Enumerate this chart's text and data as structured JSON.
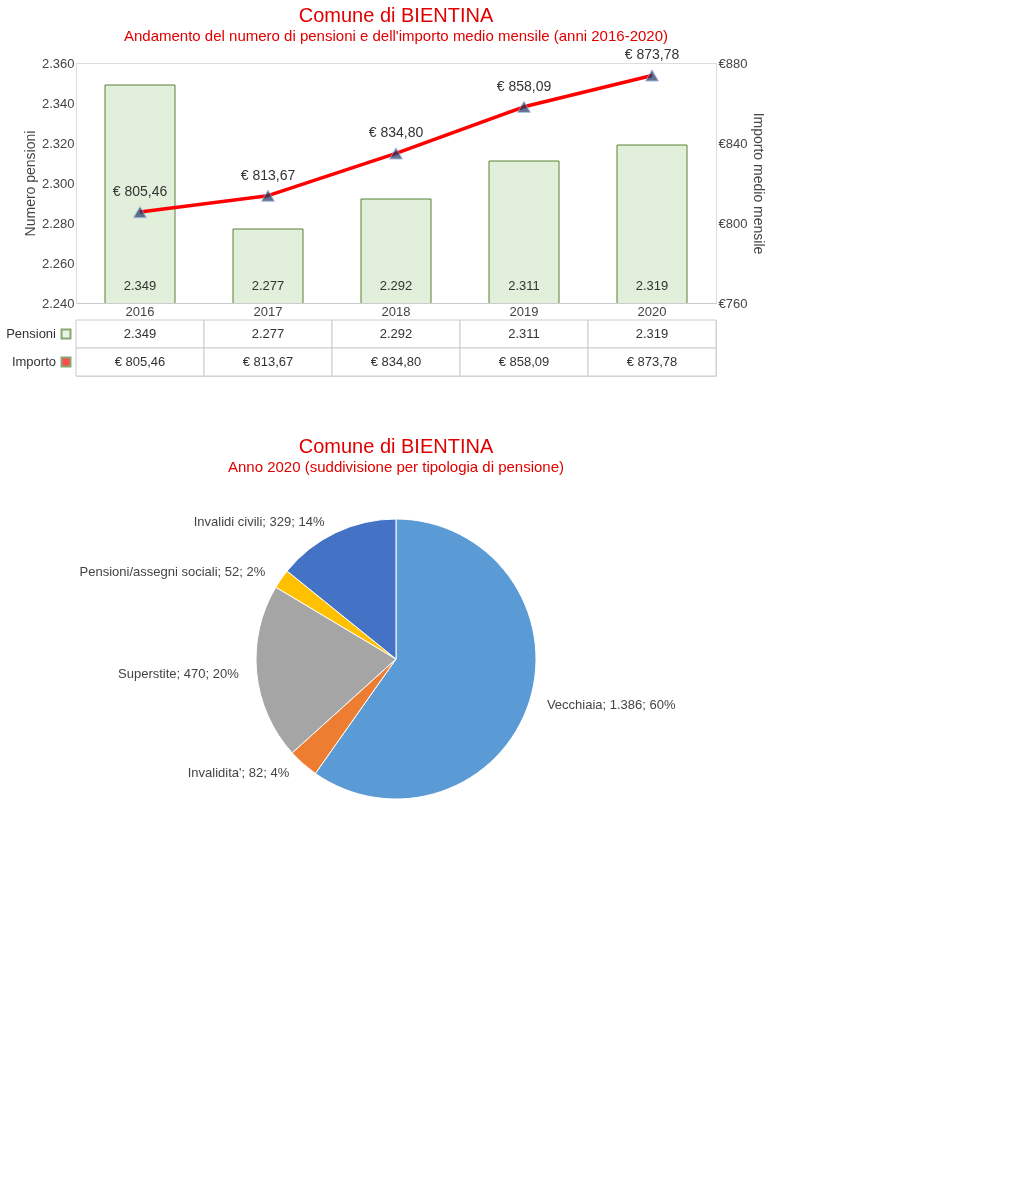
{
  "chart_data": [
    {
      "type": "bar",
      "title": "Comune di BIENTINA",
      "subtitle": "Andamento del numero di pensioni e dell'importo medio mensile (anni 2016-2020)",
      "ylabel": "Numero pensioni",
      "y2label": "Importo medio mensile",
      "categories": [
        "2016",
        "2017",
        "2018",
        "2019",
        "2020"
      ],
      "series": [
        {
          "name": "Pensioni",
          "type": "bar",
          "color": "#e2efda",
          "values": [
            2349,
            2277,
            2292,
            2311,
            2319
          ],
          "value_labels": [
            "2.349",
            "2.277",
            "2.292",
            "2.311",
            "2.319"
          ]
        },
        {
          "name": "Importo",
          "type": "line",
          "axis": "y2",
          "color": "#ff0000",
          "values": [
            805.46,
            813.67,
            834.8,
            858.09,
            873.78
          ],
          "value_labels": [
            "€ 805,46",
            "€ 813,67",
            "€ 834,80",
            "€ 858,09",
            "€ 873,78"
          ]
        }
      ],
      "marker": "triangle",
      "legend": "bottom left",
      "ylim": [
        2240,
        2360
      ],
      "yticks": [
        {
          "value": 2240,
          "label": "2.240"
        },
        {
          "value": 2260,
          "label": "2.260"
        },
        {
          "value": 2280,
          "label": "2.280"
        },
        {
          "value": 2300,
          "label": "2.300"
        },
        {
          "value": 2320,
          "label": "2.320"
        },
        {
          "value": 2340,
          "label": "2.340"
        },
        {
          "value": 2360,
          "label": "2.360"
        }
      ],
      "y2lim": [
        760,
        880
      ],
      "y2ticks": [
        {
          "value": 760,
          "label": "€760"
        },
        {
          "value": 800,
          "label": "€800"
        },
        {
          "value": 840,
          "label": "€840"
        },
        {
          "value": 880,
          "label": "€880"
        }
      ]
    },
    {
      "type": "pie",
      "title": "Comune di BIENTINA",
      "subtitle": "Anno 2020 (suddivisione per tipologia di pensione)",
      "categories": [
        "Vecchiaia",
        "Invalidita'",
        "Superstite",
        "Pensioni/assegni sociali",
        "Invalidi civili"
      ],
      "values": [
        1386,
        82,
        470,
        52,
        329
      ],
      "colors": [
        "#5b9bd5",
        "#ed7d31",
        "#a5a5a5",
        "#ffc000",
        "#4472c4"
      ],
      "value_labels": [
        "1.386; 60%",
        "82; 4%",
        "470; 20%",
        "52; 2%",
        "329; 14%"
      ]
    }
  ]
}
